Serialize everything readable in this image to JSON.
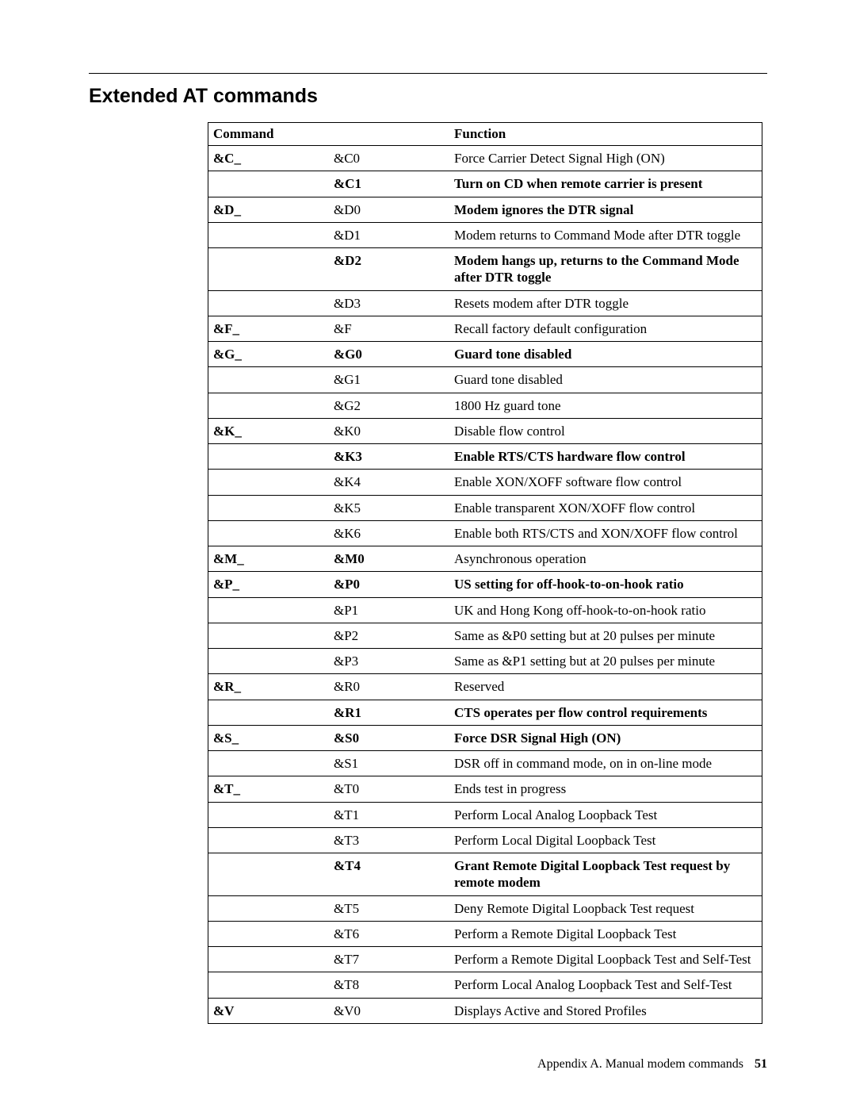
{
  "title": "Extended AT commands",
  "headers": {
    "command": "Command",
    "function": "Function"
  },
  "rows": [
    {
      "c1": "&C_",
      "c2": "&C0",
      "c3": "Force Carrier Detect Signal High (ON)",
      "b1": true
    },
    {
      "c1": "",
      "c2": "&C1",
      "c3": "Turn on CD when remote carrier is present",
      "b2": true,
      "b3": true
    },
    {
      "c1": "&D_",
      "c2": "&D0",
      "c3": "Modem ignores the DTR signal",
      "b1": true,
      "b3": true
    },
    {
      "c1": "",
      "c2": "&D1",
      "c3": "Modem returns to Command Mode after DTR toggle"
    },
    {
      "c1": "",
      "c2": "&D2",
      "c3": "Modem hangs up, returns to the Command Mode after DTR toggle",
      "b2": true,
      "b3": true
    },
    {
      "c1": "",
      "c2": "&D3",
      "c3": "Resets modem after DTR toggle"
    },
    {
      "c1": "&F_",
      "c2": "&F",
      "c3": "Recall factory default configuration",
      "b1": true
    },
    {
      "c1": "&G_",
      "c2": "&G0",
      "c3": "Guard tone disabled",
      "b1": true,
      "b2": true,
      "b3": true
    },
    {
      "c1": "",
      "c2": "&G1",
      "c3": "Guard tone disabled"
    },
    {
      "c1": "",
      "c2": "&G2",
      "c3": "1800 Hz guard tone"
    },
    {
      "c1": "&K_",
      "c2": "&K0",
      "c3": "Disable flow control",
      "b1": true
    },
    {
      "c1": "",
      "c2": "&K3",
      "c3": "Enable RTS/CTS hardware flow control",
      "b2": true,
      "b3": true
    },
    {
      "c1": "",
      "c2": "&K4",
      "c3": "Enable XON/XOFF software flow control"
    },
    {
      "c1": "",
      "c2": "&K5",
      "c3": "Enable transparent XON/XOFF flow control"
    },
    {
      "c1": "",
      "c2": "&K6",
      "c3": "Enable both RTS/CTS and XON/XOFF flow control"
    },
    {
      "c1": "&M_",
      "c2": "&M0",
      "c3": "Asynchronous operation",
      "b1": true,
      "b2": true
    },
    {
      "c1": "&P_",
      "c2": "&P0",
      "c3": "US setting for off-hook-to-on-hook ratio",
      "b1": true,
      "b2": true,
      "b3": true
    },
    {
      "c1": "",
      "c2": "&P1",
      "c3": "UK and Hong Kong off-hook-to-on-hook ratio"
    },
    {
      "c1": "",
      "c2": "&P2",
      "c3": "Same as &P0 setting but at 20 pulses per minute"
    },
    {
      "c1": "",
      "c2": "&P3",
      "c3": "Same as &P1 setting but at 20 pulses per minute"
    },
    {
      "c1": "&R_",
      "c2": "&R0",
      "c3": "Reserved",
      "b1": true
    },
    {
      "c1": "",
      "c2": "&R1",
      "c3": "CTS operates per flow control requirements",
      "b2": true,
      "b3": true
    },
    {
      "c1": "&S_",
      "c2": "&S0",
      "c3": "Force DSR Signal High (ON)",
      "b1": true,
      "b2": true,
      "b3": true
    },
    {
      "c1": "",
      "c2": "&S1",
      "c3": "DSR off in command mode, on in on-line mode"
    },
    {
      "c1": "&T_",
      "c2": "&T0",
      "c3": "Ends test in progress",
      "b1": true
    },
    {
      "c1": "",
      "c2": "&T1",
      "c3": "Perform Local Analog Loopback Test"
    },
    {
      "c1": "",
      "c2": "&T3",
      "c3": "Perform Local Digital Loopback Test"
    },
    {
      "c1": "",
      "c2": "&T4",
      "c3": "Grant Remote Digital Loopback Test request by remote modem",
      "b2": true,
      "b3": true
    },
    {
      "c1": "",
      "c2": "&T5",
      "c3": "Deny Remote Digital Loopback Test request"
    },
    {
      "c1": "",
      "c2": "&T6",
      "c3": "Perform a Remote Digital Loopback Test"
    },
    {
      "c1": "",
      "c2": "&T7",
      "c3": "Perform a Remote Digital Loopback Test and Self-Test"
    },
    {
      "c1": "",
      "c2": "&T8",
      "c3": "Perform Local Analog Loopback Test and Self-Test"
    },
    {
      "c1": "&V",
      "c2": "&V0",
      "c3": "Displays Active and Stored Profiles",
      "b1": true
    }
  ],
  "footer": {
    "text": "Appendix A. Manual modem commands",
    "page": "51"
  }
}
